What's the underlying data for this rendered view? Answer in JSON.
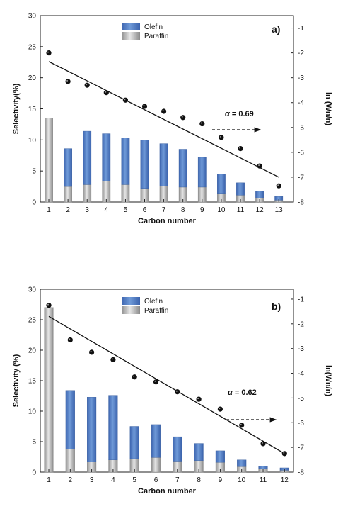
{
  "chart_data": [
    {
      "panel": "a)",
      "type": "bar",
      "stacked": true,
      "categories": [
        "1",
        "2",
        "3",
        "4",
        "5",
        "6",
        "7",
        "8",
        "9",
        "10",
        "11",
        "12",
        "13"
      ],
      "series": [
        {
          "name": "Paraffin",
          "color": "#b5b5b5",
          "values": [
            13.5,
            2.5,
            2.8,
            3.4,
            2.8,
            2.2,
            2.6,
            2.4,
            2.4,
            1.4,
            1.1,
            0.6,
            0.3
          ]
        },
        {
          "name": "Olefin",
          "color": "#4f79c4",
          "values": [
            0,
            6.1,
            8.6,
            7.6,
            7.5,
            7.8,
            6.8,
            6.1,
            4.8,
            3.1,
            2.0,
            1.2,
            0.6
          ]
        }
      ],
      "ln_points": {
        "x": [
          1,
          2,
          3,
          4,
          5,
          6,
          7,
          8,
          9,
          10,
          11,
          12,
          13
        ],
        "y": [
          -2.0,
          -3.15,
          -3.3,
          -3.6,
          -3.9,
          -4.15,
          -4.35,
          -4.6,
          -4.85,
          -5.4,
          -5.85,
          -6.55,
          -7.35
        ]
      },
      "fit_line": {
        "x": [
          1,
          13
        ],
        "y": [
          -2.35,
          -7.0
        ]
      },
      "annotation": "= 0.69",
      "annotation_symbol": "α",
      "xlabel": "Carbon number",
      "ylabel": "Selectivity(%)",
      "y2label": "ln (Wn/n)",
      "ylim": [
        0,
        30
      ],
      "y2lim": [
        -8,
        -0.5
      ],
      "yticks": [
        "0",
        "5",
        "10",
        "15",
        "20",
        "25",
        "30"
      ],
      "y2ticks": [
        "-1",
        "-2",
        "-3",
        "-4",
        "-5",
        "-6",
        "-7",
        "-8"
      ],
      "legend_position": "top-center"
    },
    {
      "panel": "b)",
      "type": "bar",
      "stacked": true,
      "categories": [
        "1",
        "2",
        "3",
        "4",
        "5",
        "6",
        "7",
        "8",
        "9",
        "10",
        "11",
        "12"
      ],
      "series": [
        {
          "name": "Paraffin",
          "color": "#b5b5b5",
          "values": [
            27.0,
            3.8,
            1.7,
            2.0,
            2.2,
            2.4,
            1.8,
            1.9,
            1.6,
            0.9,
            0.5,
            0.3
          ]
        },
        {
          "name": "Olefin",
          "color": "#4f79c4",
          "values": [
            0,
            9.6,
            10.6,
            10.6,
            5.3,
            5.4,
            4.0,
            2.8,
            1.9,
            1.1,
            0.5,
            0.4
          ]
        }
      ],
      "ln_points": {
        "x": [
          1,
          2,
          3,
          4,
          5,
          6,
          7,
          8,
          9,
          10,
          11,
          12
        ],
        "y": [
          -1.25,
          -2.65,
          -3.15,
          -3.45,
          -4.15,
          -4.35,
          -4.75,
          -5.05,
          -5.45,
          -6.1,
          -6.85,
          -7.25
        ]
      },
      "fit_line": {
        "x": [
          1,
          12
        ],
        "y": [
          -1.7,
          -7.25
        ]
      },
      "annotation": "= 0.62",
      "annotation_symbol": "α",
      "xlabel": "Carbon number",
      "ylabel": "Selectivity (%)",
      "y2label": "ln(Wn/n)",
      "ylim": [
        0,
        30
      ],
      "y2lim": [
        -8,
        -0.6
      ],
      "yticks": [
        "0",
        "5",
        "10",
        "15",
        "20",
        "25",
        "30"
      ],
      "y2ticks": [
        "-1",
        "-2",
        "-3",
        "-4",
        "-5",
        "-6",
        "-7",
        "-8"
      ],
      "legend_position": "top-center"
    }
  ]
}
